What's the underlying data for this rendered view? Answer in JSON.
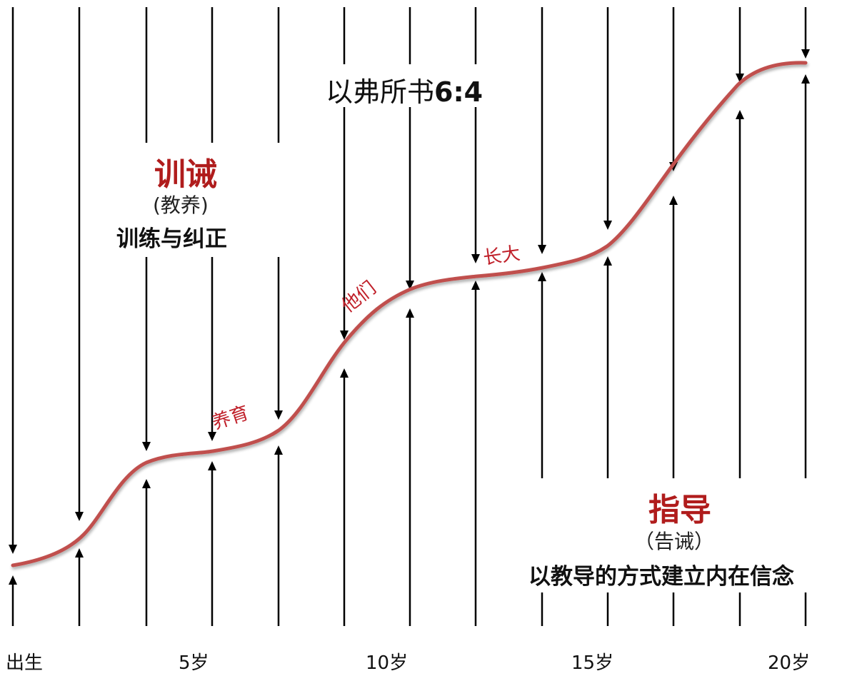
{
  "verse": {
    "text": "以弗所书",
    "ref": "6:4"
  },
  "left_block": {
    "title": "训诫",
    "subtitle": "(教养)",
    "description": "训练与纠正"
  },
  "right_block": {
    "title": "指导",
    "subtitle": "（告诫）",
    "description": "以教导的方式建立内在信念"
  },
  "curve_labels": [
    "养育",
    "他们",
    "长大"
  ],
  "age_labels": [
    "出生",
    "5岁",
    "10岁",
    "15岁",
    "20岁"
  ],
  "colors": {
    "curve": "#c0504d",
    "label_red": "#c0202a",
    "title_red": "#b01c1c",
    "arrow": "#000000"
  }
}
